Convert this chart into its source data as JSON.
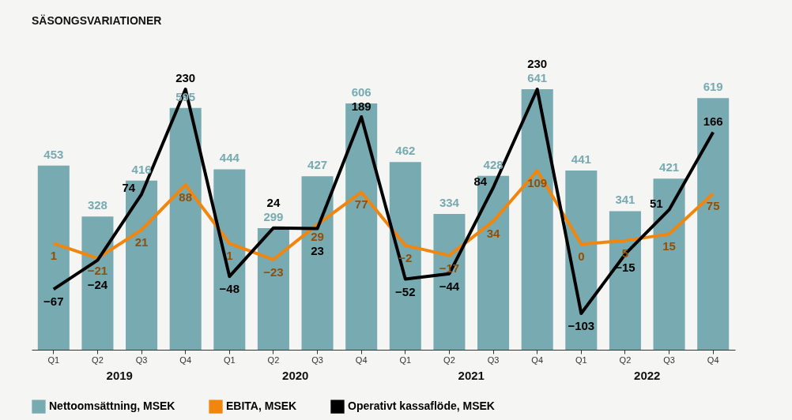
{
  "chart_data": {
    "type": "bar",
    "title": "SÄSONGSVARIATIONER",
    "categories": [
      "Q1",
      "Q2",
      "Q3",
      "Q4",
      "Q1",
      "Q2",
      "Q3",
      "Q4",
      "Q1",
      "Q2",
      "Q3",
      "Q4",
      "Q1",
      "Q2",
      "Q3",
      "Q4"
    ],
    "annotations": [
      "2019",
      "2020",
      "2021",
      "2022"
    ],
    "series": [
      {
        "name": "Nettoomsättning, MSEK",
        "color": "#78aab2",
        "values": [
          453,
          328,
          416,
          595,
          444,
          299,
          427,
          606,
          462,
          334,
          428,
          641,
          441,
          341,
          421,
          619
        ]
      },
      {
        "name": "EBITA, MSEK",
        "type": "line",
        "axis": "y2",
        "color": "#f0860e",
        "values": [
          1,
          -21,
          21,
          88,
          1,
          -23,
          29,
          77,
          -2,
          -17,
          34,
          109,
          0,
          5,
          15,
          75
        ]
      },
      {
        "name": "Operativt kassaflöde, MSEK",
        "type": "line",
        "axis": "y2",
        "color": "#000000",
        "values": [
          -67,
          -24,
          74,
          230,
          -48,
          24,
          23,
          189,
          -52,
          -44,
          84,
          230,
          -103,
          -15,
          51,
          166
        ]
      }
    ],
    "tick_labels": "x",
    "data_labels": true,
    "legend": "bottom",
    "grid": false,
    "marker": "none"
  }
}
